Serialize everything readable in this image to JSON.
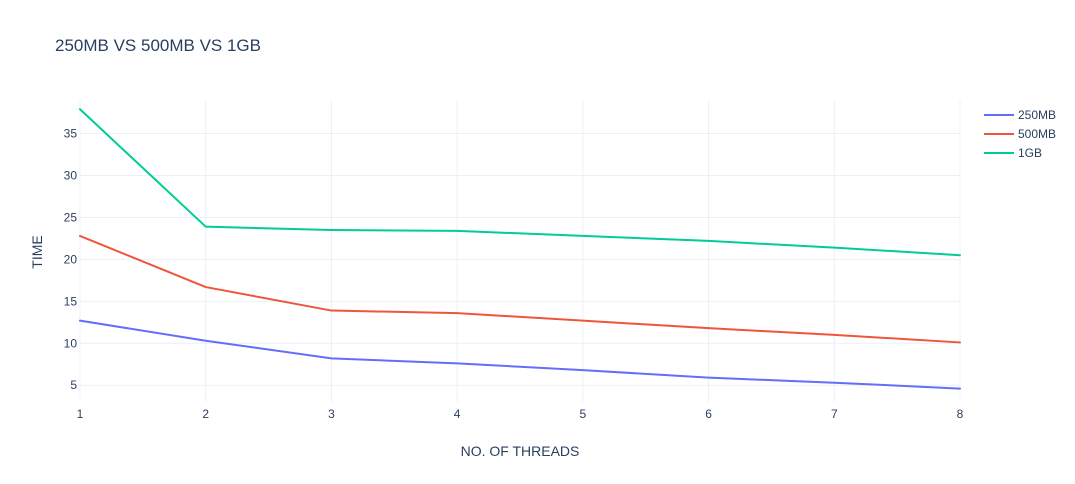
{
  "chart_data": {
    "type": "line",
    "title": "250MB VS 500MB VS 1GB",
    "xlabel": "NO. OF THREADS",
    "ylabel": "TIME",
    "x": [
      1,
      2,
      3,
      4,
      5,
      6,
      7,
      8
    ],
    "x_ticks": [
      "1",
      "2",
      "3",
      "4",
      "5",
      "6",
      "7",
      "8"
    ],
    "y_ticks": [
      "5",
      "10",
      "15",
      "20",
      "25",
      "30",
      "35"
    ],
    "xlim": [
      1,
      8
    ],
    "ylim": [
      3,
      39
    ],
    "grid": true,
    "legend_position": "top-right",
    "series": [
      {
        "name": "250MB",
        "color": "#636efa",
        "values": [
          12.7,
          10.3,
          8.2,
          7.6,
          6.8,
          5.9,
          5.3,
          4.6
        ]
      },
      {
        "name": "500MB",
        "color": "#ef553b",
        "values": [
          22.8,
          16.7,
          13.9,
          13.6,
          12.7,
          11.8,
          11.0,
          10.1
        ]
      },
      {
        "name": "1GB",
        "color": "#00cc96",
        "values": [
          37.9,
          23.9,
          23.5,
          23.4,
          22.8,
          22.2,
          21.4,
          20.5
        ]
      }
    ]
  }
}
